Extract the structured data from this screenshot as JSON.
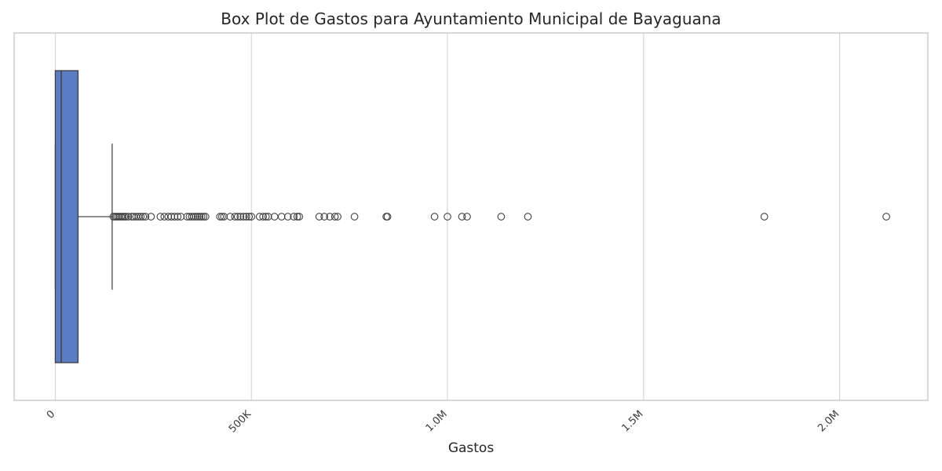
{
  "chart_data": {
    "type": "boxplot",
    "title": "Box Plot de Gastos para Ayuntamiento Municipal de Bayaguana",
    "xlabel": "Gastos",
    "ylabel": "",
    "orientation": "horizontal",
    "xlim": [
      -105000,
      2225000
    ],
    "grid": true,
    "box_color": "#5b7bc4",
    "x_ticks": [
      {
        "value": 0,
        "label": "0"
      },
      {
        "value": 500000,
        "label": "500K"
      },
      {
        "value": 1000000,
        "label": "1.0M"
      },
      {
        "value": 1500000,
        "label": "1.5M"
      },
      {
        "value": 2000000,
        "label": "2.0M"
      }
    ],
    "stats": {
      "whisker_low": 0,
      "q1": 0,
      "median": 15000,
      "q3": 58000,
      "whisker_high": 145000
    },
    "outliers": [
      148000,
      152000,
      156000,
      160000,
      164000,
      168000,
      172000,
      176000,
      180000,
      186000,
      195000,
      200000,
      206000,
      212000,
      218000,
      224000,
      230000,
      244000,
      268000,
      278000,
      288000,
      296000,
      304000,
      312000,
      320000,
      336000,
      342000,
      348000,
      353000,
      358000,
      363000,
      368000,
      373000,
      378000,
      383000,
      420000,
      425000,
      430000,
      446000,
      458000,
      465000,
      472000,
      480000,
      487000,
      494000,
      500000,
      521000,
      530000,
      537000,
      543000,
      559000,
      577000,
      593000,
      608000,
      617000,
      622000,
      673000,
      686000,
      700000,
      713000,
      720000,
      763000,
      844000,
      847000,
      967000,
      1000000,
      1037000,
      1050000,
      1137000,
      1205000,
      1808000,
      2119000
    ]
  }
}
